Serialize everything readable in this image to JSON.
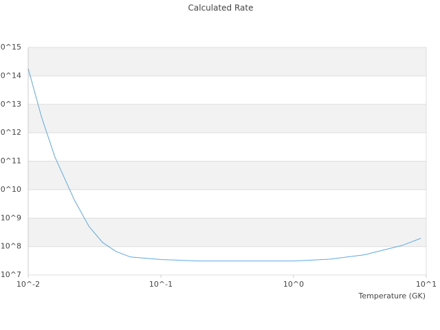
{
  "chart_data": {
    "type": "line",
    "title": "Calculated Rate",
    "x_label": "Temperature (GK)",
    "x_log": true,
    "y_log": true,
    "grid": true,
    "color": "#5aa9e6",
    "x": [
      0.01,
      0.0126,
      0.0159,
      0.0224,
      0.0288,
      0.0363,
      0.0457,
      0.0589,
      0.1,
      0.195,
      1,
      1.88,
      3.39,
      6.6,
      9.1
    ],
    "values": [
      180000000000000.0,
      3600000000000.0,
      140000000000.0,
      4100000000.0,
      500000000.0,
      140000000.0,
      68000000.0,
      43000000.0,
      35000000.0,
      31000000.0,
      31000000.0,
      36000000.0,
      51000000.0,
      110000000.0,
      195000000.0
    ],
    "xlim": [
      0.01,
      10
    ],
    "xticks": [
      {
        "value": 0.01,
        "label": "10^-2"
      },
      {
        "value": 0.1,
        "label": "10^-1"
      },
      {
        "value": 1,
        "label": "10^0"
      },
      {
        "value": 10,
        "label": "10^1"
      }
    ],
    "ylim": [
      10000000.0,
      1000000000000000.0
    ],
    "yticks": [
      {
        "value": 10000000.0,
        "label": "10^7"
      },
      {
        "value": 100000000.0,
        "label": "10^8"
      },
      {
        "value": 1000000000.0,
        "label": "10^9"
      },
      {
        "value": 10000000000.0,
        "label": "10^10"
      },
      {
        "value": 100000000000.0,
        "label": "10^11"
      },
      {
        "value": 1000000000000.0,
        "label": "10^12"
      },
      {
        "value": 10000000000000.0,
        "label": "10^13"
      },
      {
        "value": 100000000000000.0,
        "label": "10^14"
      },
      {
        "value": 1000000000000000.0,
        "label": "10^15"
      }
    ]
  }
}
